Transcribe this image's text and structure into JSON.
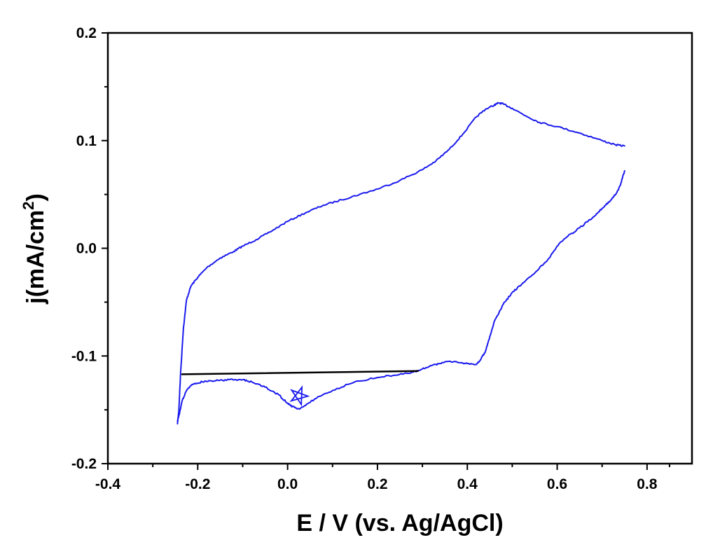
{
  "chart_data": {
    "type": "line",
    "title": "",
    "xlabel": "E / V (vs. Ag/AgCl)",
    "ylabel": "j(mA/cm",
    "ylabel_sup": "2",
    "ylabel_suffix": ")",
    "xlim": [
      -0.4,
      0.9
    ],
    "ylim": [
      -0.2,
      0.2
    ],
    "xticks": [
      -0.4,
      -0.2,
      0.0,
      0.2,
      0.4,
      0.6,
      0.8
    ],
    "xtick_labels": [
      "-0.4",
      "-0.2",
      "0.0",
      "0.2",
      "0.4",
      "0.6",
      "0.8"
    ],
    "yticks": [
      -0.2,
      -0.1,
      0.0,
      0.1,
      0.2
    ],
    "ytick_labels": [
      "-0.2",
      "-0.1",
      "0.0",
      "0.1",
      "0.2"
    ],
    "grid": false,
    "colors": {
      "cv": "#1a1aee",
      "baseline": "#000000",
      "marker": "#1a1aee"
    },
    "series": [
      {
        "color": "#1a1aee",
        "x": [
          -0.245,
          -0.242,
          -0.238,
          -0.232,
          -0.225,
          -0.215,
          -0.2,
          -0.18,
          -0.15,
          -0.12,
          -0.1,
          -0.07,
          -0.04,
          0.0,
          0.04,
          0.08,
          0.12,
          0.16,
          0.2,
          0.25,
          0.3,
          0.33,
          0.36,
          0.39,
          0.42,
          0.44,
          0.46,
          0.47,
          0.48,
          0.5,
          0.53,
          0.56,
          0.6,
          0.65,
          0.7,
          0.73,
          0.75
        ],
        "y": [
          -0.163,
          -0.15,
          -0.115,
          -0.075,
          -0.048,
          -0.035,
          -0.027,
          -0.018,
          -0.009,
          -0.003,
          0.002,
          0.008,
          0.015,
          0.025,
          0.033,
          0.04,
          0.045,
          0.05,
          0.055,
          0.063,
          0.073,
          0.081,
          0.092,
          0.106,
          0.122,
          0.129,
          0.133,
          0.135,
          0.134,
          0.13,
          0.123,
          0.117,
          0.113,
          0.107,
          0.1,
          0.096,
          0.095
        ]
      },
      {
        "color": "#1a1aee",
        "x": [
          0.75,
          0.74,
          0.73,
          0.72,
          0.7,
          0.68,
          0.65,
          0.62,
          0.6,
          0.58,
          0.55,
          0.52,
          0.5,
          0.48,
          0.46,
          0.45,
          0.44,
          0.43,
          0.42,
          0.4,
          0.38,
          0.36,
          0.34,
          0.32,
          0.3,
          0.28,
          0.25,
          0.2,
          0.15,
          0.1,
          0.06,
          0.04,
          0.025,
          0.01,
          0.0,
          -0.02,
          -0.05,
          -0.08,
          -0.1,
          -0.13,
          -0.16,
          -0.19,
          -0.21,
          -0.225,
          -0.235,
          -0.24,
          -0.245
        ],
        "y": [
          0.072,
          0.058,
          0.05,
          0.045,
          0.037,
          0.029,
          0.019,
          0.01,
          0.002,
          -0.01,
          -0.023,
          -0.034,
          -0.041,
          -0.052,
          -0.068,
          -0.082,
          -0.096,
          -0.103,
          -0.108,
          -0.107,
          -0.106,
          -0.105,
          -0.107,
          -0.109,
          -0.112,
          -0.115,
          -0.117,
          -0.12,
          -0.124,
          -0.132,
          -0.14,
          -0.146,
          -0.149,
          -0.147,
          -0.144,
          -0.136,
          -0.129,
          -0.124,
          -0.122,
          -0.122,
          -0.123,
          -0.124,
          -0.126,
          -0.132,
          -0.142,
          -0.152,
          -0.16
        ]
      },
      {
        "color": "#000000",
        "x": [
          -0.235,
          0.29
        ],
        "y": [
          -0.117,
          -0.114
        ]
      }
    ],
    "annotations": [
      {
        "type": "star-marker",
        "x": 0.025,
        "y": -0.137,
        "color": "#1a1aee"
      }
    ]
  }
}
